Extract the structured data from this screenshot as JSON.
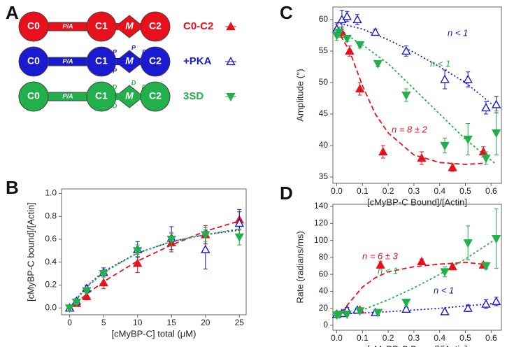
{
  "diagram": {
    "panel_label": "A",
    "rows": [
      {
        "domains": [
          "C0",
          "P/A",
          "C1",
          "M",
          "C2"
        ],
        "legend": "C0-C2",
        "color": "#e8101a",
        "marker": "up-filled"
      },
      {
        "domains": [
          "C0",
          "P/A",
          "C1",
          "M",
          "C2"
        ],
        "sites": [
          "P",
          "P",
          "P",
          "P"
        ],
        "legend": "+PKA",
        "color": "#1a1ad0",
        "marker": "up-open"
      },
      {
        "domains": [
          "C0",
          "P/A",
          "C1",
          "M",
          "C2"
        ],
        "sites": [
          "D",
          "D",
          "D",
          "D"
        ],
        "legend": "3SD",
        "color": "#22b04a",
        "marker": "down-filled"
      }
    ]
  },
  "chart_data": [
    {
      "type": "scatter",
      "panel_label": "B",
      "x_label": "[cMyBP-C] total (μM)",
      "y_label": "[cMyBP-C bound]/[Actin]",
      "xlim": [
        -1.2,
        26
      ],
      "ylim": [
        -0.06,
        1.04
      ],
      "xticks": [
        0,
        5,
        10,
        15,
        20,
        25
      ],
      "yticks": [
        {
          "value": 0,
          "label": "0.0"
        },
        {
          "value": 0.2,
          "label": "0.2"
        },
        {
          "value": 0.4,
          "label": "0.4"
        },
        {
          "value": 0.6,
          "label": "0.6"
        },
        {
          "value": 0.8,
          "label": "0.8"
        },
        {
          "value": 1,
          "label": "1.0"
        }
      ],
      "series": [
        {
          "color": "#e8101a",
          "marker": "up-filled",
          "x": [
            0,
            1,
            2.5,
            5,
            10,
            15,
            20,
            25
          ],
          "values": [
            0,
            0.04,
            0.1,
            0.22,
            0.39,
            0.57,
            0.64,
            0.77
          ],
          "errors": [
            0,
            0.02,
            0.03,
            0.05,
            0.08,
            0.08,
            0.08,
            0.09
          ]
        },
        {
          "color": "#1a1ad0",
          "marker": "up-open",
          "x": [
            0,
            1,
            2.5,
            5,
            10,
            15,
            20,
            25
          ],
          "values": [
            0,
            0.06,
            0.17,
            0.31,
            0.51,
            0.61,
            0.51,
            0.74
          ],
          "errors": [
            0,
            0.02,
            0.03,
            0.04,
            0.07,
            0.1,
            0.17,
            0.1
          ]
        },
        {
          "color": "#22b04a",
          "marker": "down-filled",
          "x": [
            0,
            1,
            2.5,
            5,
            10,
            15,
            20,
            25
          ],
          "values": [
            0,
            0.05,
            0.15,
            0.3,
            0.5,
            0.6,
            0.64,
            0.62
          ],
          "errors": [
            0,
            0.02,
            0.02,
            0.03,
            0.05,
            0.06,
            0.06,
            0.07
          ]
        }
      ],
      "fits": [
        {
          "color": "#e8101a",
          "dash": "7 4",
          "x": [
            0,
            2.5,
            5,
            10,
            15,
            20,
            25
          ],
          "values": [
            0,
            0.12,
            0.23,
            0.41,
            0.55,
            0.67,
            0.76
          ]
        },
        {
          "color": "#1a1ad0",
          "dash": "2 3",
          "x": [
            0,
            2.5,
            5,
            10,
            15,
            20,
            25
          ],
          "values": [
            0,
            0.19,
            0.32,
            0.48,
            0.58,
            0.64,
            0.68
          ]
        },
        {
          "color": "#22b04a",
          "dash": "3 3",
          "x": [
            0,
            2.5,
            5,
            10,
            15,
            20,
            25
          ],
          "values": [
            0,
            0.18,
            0.31,
            0.48,
            0.58,
            0.64,
            0.69
          ]
        }
      ],
      "annotations": []
    },
    {
      "type": "scatter",
      "panel_label": "C",
      "x_label": "[cMyBP-C Bound]/[Actin]",
      "y_label": "Amplitude (°)",
      "xlim": [
        -0.015,
        0.64
      ],
      "ylim": [
        34,
        62
      ],
      "xticks": [
        {
          "value": 0,
          "label": "0.0"
        },
        {
          "value": 0.1,
          "label": "0.1"
        },
        {
          "value": 0.2,
          "label": "0.2"
        },
        {
          "value": 0.3,
          "label": "0.3"
        },
        {
          "value": 0.4,
          "label": "0.4"
        },
        {
          "value": 0.5,
          "label": "0.5"
        },
        {
          "value": 0.6,
          "label": "0.6"
        }
      ],
      "yticks": [
        35,
        40,
        45,
        50,
        55,
        60
      ],
      "series": [
        {
          "color": "#e8101a",
          "marker": "up-filled",
          "x": [
            0,
            0.02,
            0.05,
            0.09,
            0.18,
            0.33,
            0.45,
            0.57
          ],
          "values": [
            58.5,
            58,
            55,
            49,
            39,
            38,
            36.5,
            39
          ],
          "errors": [
            0.8,
            0.8,
            0.8,
            1,
            1,
            1,
            0.6,
            0.8
          ]
        },
        {
          "color": "#1a1ad0",
          "marker": "up-open",
          "x": [
            0,
            0.02,
            0.04,
            0.08,
            0.15,
            0.27,
            0.42,
            0.51,
            0.58,
            0.62
          ],
          "values": [
            58.5,
            60,
            60.5,
            60,
            58,
            55,
            50.5,
            50.5,
            46,
            46.5
          ],
          "errors": [
            1,
            1.5,
            0.8,
            0.8,
            0.5,
            0.8,
            1.5,
            1.2,
            1,
            1.3
          ]
        },
        {
          "color": "#22b04a",
          "marker": "down-filled",
          "x": [
            0,
            0.01,
            0.04,
            0.09,
            0.16,
            0.27,
            0.42,
            0.51,
            0.58,
            0.62
          ],
          "values": [
            57.5,
            58,
            57,
            56,
            53,
            48,
            40,
            41,
            38,
            42
          ],
          "errors": [
            0.8,
            0.8,
            0.5,
            0.5,
            0.5,
            1,
            1.2,
            2.5,
            1,
            3.5
          ]
        }
      ],
      "fits": [
        {
          "color": "#e8101a",
          "dash": "7 4",
          "x": [
            0,
            0.05,
            0.1,
            0.15,
            0.2,
            0.3,
            0.4,
            0.5,
            0.58
          ],
          "values": [
            58.5,
            55,
            49.5,
            45,
            42,
            38.5,
            37.3,
            37,
            37.2
          ]
        },
        {
          "color": "#1a1ad0",
          "dash": "2 3",
          "x": [
            0,
            0.1,
            0.2,
            0.3,
            0.4,
            0.5,
            0.62
          ],
          "values": [
            59.5,
            58.5,
            56.8,
            54.8,
            52.5,
            50,
            46
          ]
        },
        {
          "color": "#22b04a",
          "dash": "3 3",
          "x": [
            0,
            0.1,
            0.2,
            0.3,
            0.4,
            0.5,
            0.62
          ],
          "values": [
            58.5,
            56,
            53,
            49,
            45,
            41,
            37
          ]
        }
      ],
      "annotations": [
        {
          "text": "n < 1",
          "color": "#1a1ad0"
        },
        {
          "text": "n < 1",
          "color": "#22b04a"
        },
        {
          "text": "n = 8 ± 2",
          "color": "#e8101a"
        }
      ]
    },
    {
      "type": "scatter",
      "panel_label": "D",
      "x_label": "[cMyBP-C Bound]/[Actin]",
      "y_label": "Rate (radians/ms)",
      "xlim": [
        -0.015,
        0.64
      ],
      "ylim": [
        -5.8,
        142.5
      ],
      "xticks": [
        {
          "value": 0,
          "label": "0.0"
        },
        {
          "value": 0.1,
          "label": "0.1"
        },
        {
          "value": 0.2,
          "label": "0.2"
        },
        {
          "value": 0.3,
          "label": "0.3"
        },
        {
          "value": 0.4,
          "label": "0.4"
        },
        {
          "value": 0.5,
          "label": "0.5"
        },
        {
          "value": 0.6,
          "label": "0.6"
        }
      ],
      "yticks": [
        0,
        20,
        40,
        60,
        80,
        100,
        120,
        140
      ],
      "series": [
        {
          "color": "#e8101a",
          "marker": "up-filled",
          "x": [
            0,
            0.02,
            0.09,
            0.17,
            0.33,
            0.45,
            0.57
          ],
          "values": [
            13,
            14,
            18,
            71,
            75,
            69,
            71
          ],
          "errors": [
            2,
            2,
            2,
            4,
            3,
            3,
            3
          ]
        },
        {
          "color": "#1a1ad0",
          "marker": "up-open",
          "x": [
            0,
            0.02,
            0.04,
            0.08,
            0.15,
            0.27,
            0.42,
            0.51,
            0.58,
            0.62
          ],
          "values": [
            13,
            14,
            18,
            18,
            15,
            19,
            16,
            20,
            25,
            28
          ],
          "errors": [
            2,
            2,
            3,
            2,
            2,
            2,
            2,
            4,
            5,
            5
          ]
        },
        {
          "color": "#22b04a",
          "marker": "down-filled",
          "x": [
            0,
            0.01,
            0.04,
            0.09,
            0.16,
            0.27,
            0.42,
            0.51,
            0.58,
            0.62
          ],
          "values": [
            12,
            13,
            13,
            17,
            15,
            27,
            63,
            97,
            70,
            102
          ],
          "errors": [
            2,
            2,
            2,
            2,
            2,
            4,
            6,
            20,
            4,
            35
          ]
        }
      ],
      "fits": [
        {
          "color": "#e8101a",
          "dash": "7 4",
          "x": [
            0,
            0.05,
            0.1,
            0.15,
            0.2,
            0.3,
            0.4,
            0.5,
            0.57
          ],
          "values": [
            8,
            27,
            45,
            56,
            63,
            69,
            72,
            74,
            72
          ]
        },
        {
          "color": "#22b04a",
          "dash": "3 3",
          "x": [
            0,
            0.1,
            0.2,
            0.3,
            0.4,
            0.5,
            0.62
          ],
          "values": [
            10,
            18,
            30,
            44,
            60,
            78,
            102
          ]
        },
        {
          "color": "#1a1ad0",
          "dash": "2 3",
          "x": [
            0,
            0.2,
            0.4,
            0.62
          ],
          "values": [
            13,
            16,
            20,
            26
          ]
        }
      ],
      "annotations": [
        {
          "text": "n = 6 ± 3",
          "color": "#e8101a"
        },
        {
          "text": "n < 1",
          "color": "#22b04a"
        },
        {
          "text": "n < 1",
          "color": "#1a1ad0"
        }
      ]
    }
  ]
}
